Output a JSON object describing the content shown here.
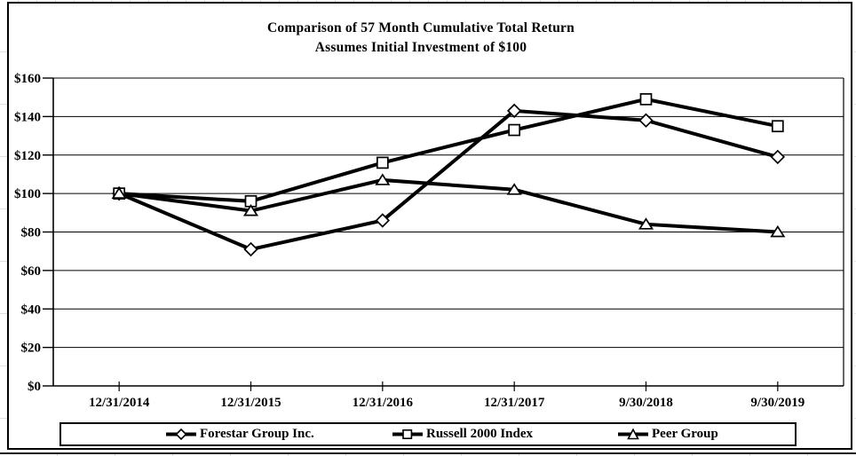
{
  "title": {
    "line1": "Comparison of 57 Month Cumulative Total Return",
    "line2": "Assumes Initial Investment of $100"
  },
  "chart_data": {
    "type": "line",
    "title": "Comparison of 57 Month Cumulative Total Return",
    "subtitle": "Assumes Initial Investment of $100",
    "categories": [
      "12/31/2014",
      "12/31/2015",
      "12/31/2016",
      "12/31/2017",
      "9/30/2018",
      "9/30/2019"
    ],
    "series": [
      {
        "name": "Forestar Group Inc.",
        "marker": "diamond",
        "values": [
          100,
          71,
          86,
          143,
          138,
          119
        ]
      },
      {
        "name": "Russell 2000 Index",
        "marker": "square",
        "values": [
          100,
          96,
          116,
          133,
          149,
          135
        ]
      },
      {
        "name": "Peer Group",
        "marker": "triangle",
        "values": [
          100,
          91,
          107,
          102,
          84,
          80
        ]
      }
    ],
    "xlabel": "",
    "ylabel": "",
    "ylim": [
      0,
      160
    ],
    "ytick_step": 20,
    "ytick_labels": [
      "$0",
      "$20",
      "$40",
      "$60",
      "$80",
      "$100",
      "$120",
      "$140",
      "$160"
    ],
    "grid": true,
    "legend_position": "bottom",
    "line_color": "#000000",
    "marker_fill": "#ffffff"
  }
}
